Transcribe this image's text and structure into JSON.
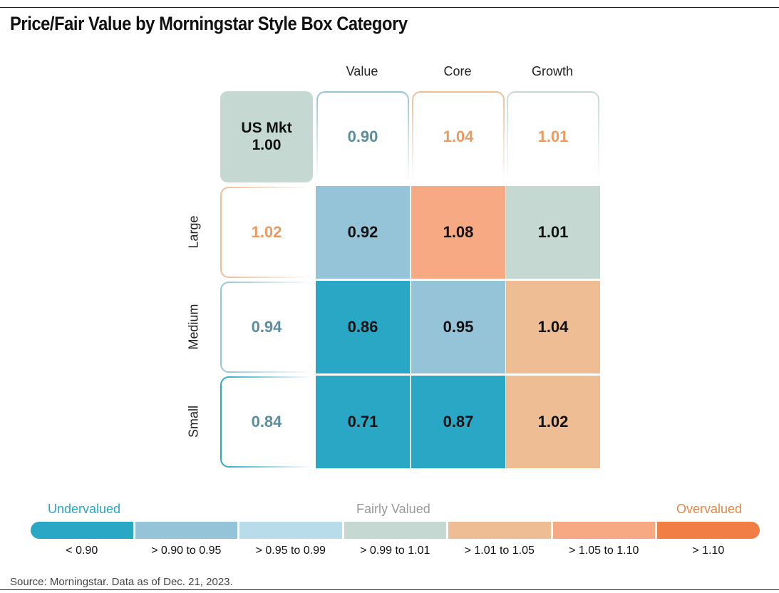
{
  "title": "Price/Fair Value by Morningstar Style Box Category",
  "source": "Source: Morningstar. Data as of Dec. 21, 2023.",
  "chart_data": {
    "type": "heatmap",
    "columns": [
      "Value",
      "Core",
      "Growth"
    ],
    "rows": [
      "Large",
      "Medium",
      "Small"
    ],
    "market": {
      "label": "US Mkt",
      "value": "1.00"
    },
    "column_totals": [
      "0.90",
      "1.04",
      "1.01"
    ],
    "row_totals": [
      "1.02",
      "0.94",
      "0.84"
    ],
    "values": [
      [
        "0.92",
        "1.08",
        "1.01"
      ],
      [
        "0.86",
        "0.95",
        "1.04"
      ],
      [
        "0.71",
        "0.87",
        "1.02"
      ]
    ],
    "legend": {
      "left": "Undervalued",
      "center": "Fairly Valued",
      "right": "Overvalued",
      "bins": [
        "< 0.90",
        "> 0.90 to 0.95",
        "> 0.95 to 0.99",
        "> 0.99 to 1.01",
        "> 1.01 to 1.05",
        "> 1.05 to 1.10",
        "> 1.10"
      ],
      "colors": [
        "#2ba7c6",
        "#95c4d9",
        "#b9dcea",
        "#c5d9d2",
        "#efbd93",
        "#f6a983",
        "#f07e45"
      ]
    }
  }
}
